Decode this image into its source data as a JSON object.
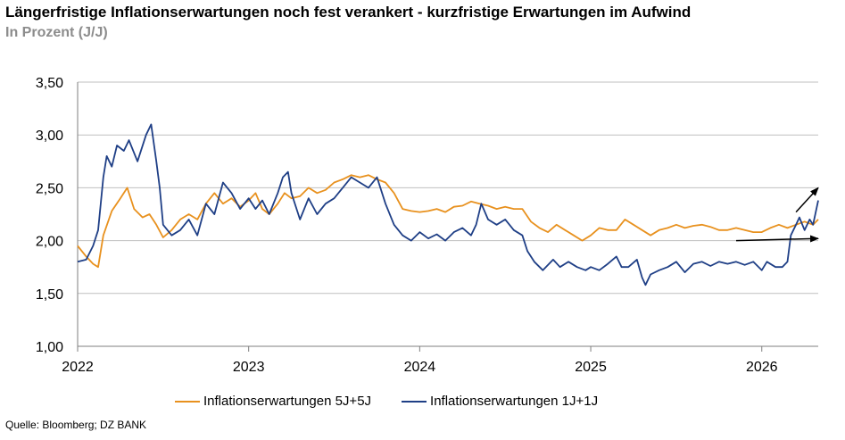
{
  "header": {
    "title": "Längerfristige Inflationserwartungen noch fest verankert - kurzfristige Erwartungen im Aufwind",
    "subtitle": "In Prozent (J/J)"
  },
  "footer": {
    "source": "Quelle: Bloomberg; DZ BANK"
  },
  "colors": {
    "series_5y5y": "#e8911e",
    "series_1y1y": "#1f3f86",
    "grid": "#bfbfbf",
    "axis": "#7f7f7f"
  },
  "chart_data": {
    "type": "line",
    "title": "Längerfristige Inflationserwartungen noch fest verankert - kurzfristige Erwartungen im Aufwind",
    "subtitle": "In Prozent (J/J)",
    "xlabel": "",
    "ylabel": "",
    "ylim": [
      1.0,
      3.5
    ],
    "xlim": [
      2022.0,
      2026.33
    ],
    "grid": "horizontal",
    "legend_position": "bottom",
    "y_ticks": [
      "1,00",
      "1,50",
      "2,00",
      "2,50",
      "3,00",
      "3,50"
    ],
    "x_ticks": [
      "2022",
      "2023",
      "2024",
      "2025",
      "2026"
    ],
    "series": [
      {
        "name": "Inflationserwartungen 5J+5J",
        "color": "#e8911e",
        "points": [
          [
            2022.0,
            1.95
          ],
          [
            2022.05,
            1.85
          ],
          [
            2022.09,
            1.78
          ],
          [
            2022.12,
            1.75
          ],
          [
            2022.15,
            2.05
          ],
          [
            2022.2,
            2.28
          ],
          [
            2022.25,
            2.4
          ],
          [
            2022.29,
            2.5
          ],
          [
            2022.33,
            2.3
          ],
          [
            2022.38,
            2.22
          ],
          [
            2022.42,
            2.25
          ],
          [
            2022.46,
            2.15
          ],
          [
            2022.5,
            2.03
          ],
          [
            2022.55,
            2.1
          ],
          [
            2022.6,
            2.2
          ],
          [
            2022.65,
            2.25
          ],
          [
            2022.7,
            2.2
          ],
          [
            2022.75,
            2.35
          ],
          [
            2022.8,
            2.45
          ],
          [
            2022.85,
            2.35
          ],
          [
            2022.9,
            2.4
          ],
          [
            2022.95,
            2.32
          ],
          [
            2023.0,
            2.38
          ],
          [
            2023.04,
            2.45
          ],
          [
            2023.08,
            2.3
          ],
          [
            2023.12,
            2.25
          ],
          [
            2023.17,
            2.35
          ],
          [
            2023.21,
            2.45
          ],
          [
            2023.25,
            2.4
          ],
          [
            2023.3,
            2.42
          ],
          [
            2023.35,
            2.5
          ],
          [
            2023.4,
            2.45
          ],
          [
            2023.45,
            2.48
          ],
          [
            2023.5,
            2.55
          ],
          [
            2023.55,
            2.58
          ],
          [
            2023.6,
            2.62
          ],
          [
            2023.65,
            2.6
          ],
          [
            2023.7,
            2.62
          ],
          [
            2023.75,
            2.58
          ],
          [
            2023.8,
            2.55
          ],
          [
            2023.85,
            2.45
          ],
          [
            2023.9,
            2.3
          ],
          [
            2023.95,
            2.28
          ],
          [
            2024.0,
            2.27
          ],
          [
            2024.05,
            2.28
          ],
          [
            2024.1,
            2.3
          ],
          [
            2024.15,
            2.27
          ],
          [
            2024.2,
            2.32
          ],
          [
            2024.25,
            2.33
          ],
          [
            2024.3,
            2.37
          ],
          [
            2024.35,
            2.35
          ],
          [
            2024.4,
            2.33
          ],
          [
            2024.45,
            2.3
          ],
          [
            2024.5,
            2.32
          ],
          [
            2024.55,
            2.3
          ],
          [
            2024.6,
            2.3
          ],
          [
            2024.65,
            2.18
          ],
          [
            2024.7,
            2.12
          ],
          [
            2024.75,
            2.08
          ],
          [
            2024.8,
            2.15
          ],
          [
            2024.85,
            2.1
          ],
          [
            2024.9,
            2.05
          ],
          [
            2024.95,
            2.0
          ],
          [
            2025.0,
            2.05
          ],
          [
            2025.05,
            2.12
          ],
          [
            2025.1,
            2.1
          ],
          [
            2025.15,
            2.1
          ],
          [
            2025.2,
            2.2
          ],
          [
            2025.25,
            2.15
          ],
          [
            2025.3,
            2.1
          ],
          [
            2025.35,
            2.05
          ],
          [
            2025.4,
            2.1
          ],
          [
            2025.45,
            2.12
          ],
          [
            2025.5,
            2.15
          ],
          [
            2025.55,
            2.12
          ],
          [
            2025.6,
            2.14
          ],
          [
            2025.65,
            2.15
          ],
          [
            2025.7,
            2.13
          ],
          [
            2025.75,
            2.1
          ],
          [
            2025.8,
            2.1
          ],
          [
            2025.85,
            2.12
          ],
          [
            2025.9,
            2.1
          ],
          [
            2025.95,
            2.08
          ],
          [
            2026.0,
            2.08
          ],
          [
            2026.05,
            2.12
          ],
          [
            2026.1,
            2.15
          ],
          [
            2026.15,
            2.12
          ],
          [
            2026.2,
            2.15
          ],
          [
            2026.25,
            2.18
          ],
          [
            2026.3,
            2.15
          ],
          [
            2026.33,
            2.2
          ]
        ]
      },
      {
        "name": "Inflationserwartungen 1J+1J",
        "color": "#1f3f86",
        "points": [
          [
            2022.0,
            1.8
          ],
          [
            2022.05,
            1.82
          ],
          [
            2022.09,
            1.95
          ],
          [
            2022.12,
            2.1
          ],
          [
            2022.15,
            2.6
          ],
          [
            2022.17,
            2.8
          ],
          [
            2022.2,
            2.7
          ],
          [
            2022.23,
            2.9
          ],
          [
            2022.27,
            2.85
          ],
          [
            2022.3,
            2.95
          ],
          [
            2022.35,
            2.75
          ],
          [
            2022.4,
            3.0
          ],
          [
            2022.43,
            3.1
          ],
          [
            2022.46,
            2.75
          ],
          [
            2022.48,
            2.5
          ],
          [
            2022.5,
            2.15
          ],
          [
            2022.55,
            2.05
          ],
          [
            2022.6,
            2.1
          ],
          [
            2022.65,
            2.2
          ],
          [
            2022.7,
            2.05
          ],
          [
            2022.75,
            2.35
          ],
          [
            2022.8,
            2.25
          ],
          [
            2022.85,
            2.55
          ],
          [
            2022.9,
            2.45
          ],
          [
            2022.95,
            2.3
          ],
          [
            2023.0,
            2.4
          ],
          [
            2023.04,
            2.3
          ],
          [
            2023.08,
            2.38
          ],
          [
            2023.12,
            2.25
          ],
          [
            2023.17,
            2.45
          ],
          [
            2023.2,
            2.6
          ],
          [
            2023.23,
            2.65
          ],
          [
            2023.25,
            2.45
          ],
          [
            2023.3,
            2.2
          ],
          [
            2023.35,
            2.4
          ],
          [
            2023.4,
            2.25
          ],
          [
            2023.45,
            2.35
          ],
          [
            2023.5,
            2.4
          ],
          [
            2023.55,
            2.5
          ],
          [
            2023.6,
            2.6
          ],
          [
            2023.65,
            2.55
          ],
          [
            2023.7,
            2.5
          ],
          [
            2023.75,
            2.6
          ],
          [
            2023.8,
            2.35
          ],
          [
            2023.85,
            2.15
          ],
          [
            2023.9,
            2.05
          ],
          [
            2023.95,
            2.0
          ],
          [
            2024.0,
            2.08
          ],
          [
            2024.05,
            2.02
          ],
          [
            2024.1,
            2.06
          ],
          [
            2024.15,
            2.0
          ],
          [
            2024.2,
            2.08
          ],
          [
            2024.25,
            2.12
          ],
          [
            2024.3,
            2.05
          ],
          [
            2024.33,
            2.15
          ],
          [
            2024.36,
            2.35
          ],
          [
            2024.4,
            2.2
          ],
          [
            2024.45,
            2.15
          ],
          [
            2024.5,
            2.2
          ],
          [
            2024.55,
            2.1
          ],
          [
            2024.6,
            2.05
          ],
          [
            2024.63,
            1.9
          ],
          [
            2024.67,
            1.8
          ],
          [
            2024.72,
            1.72
          ],
          [
            2024.78,
            1.82
          ],
          [
            2024.82,
            1.75
          ],
          [
            2024.87,
            1.8
          ],
          [
            2024.92,
            1.75
          ],
          [
            2024.97,
            1.72
          ],
          [
            2025.0,
            1.75
          ],
          [
            2025.05,
            1.72
          ],
          [
            2025.1,
            1.78
          ],
          [
            2025.15,
            1.85
          ],
          [
            2025.18,
            1.75
          ],
          [
            2025.22,
            1.75
          ],
          [
            2025.27,
            1.82
          ],
          [
            2025.3,
            1.65
          ],
          [
            2025.32,
            1.58
          ],
          [
            2025.35,
            1.68
          ],
          [
            2025.4,
            1.72
          ],
          [
            2025.45,
            1.75
          ],
          [
            2025.5,
            1.8
          ],
          [
            2025.55,
            1.7
          ],
          [
            2025.6,
            1.78
          ],
          [
            2025.65,
            1.8
          ],
          [
            2025.7,
            1.76
          ],
          [
            2025.75,
            1.8
          ],
          [
            2025.8,
            1.78
          ],
          [
            2025.85,
            1.8
          ],
          [
            2025.9,
            1.77
          ],
          [
            2025.95,
            1.8
          ],
          [
            2026.0,
            1.72
          ],
          [
            2026.03,
            1.8
          ],
          [
            2026.08,
            1.75
          ],
          [
            2026.12,
            1.75
          ],
          [
            2026.15,
            1.8
          ],
          [
            2026.17,
            2.05
          ],
          [
            2026.2,
            2.15
          ],
          [
            2026.22,
            2.22
          ],
          [
            2026.25,
            2.1
          ],
          [
            2026.28,
            2.2
          ],
          [
            2026.3,
            2.15
          ],
          [
            2026.33,
            2.38
          ]
        ]
      }
    ],
    "annotations": [
      {
        "type": "arrow",
        "from": [
          2025.85,
          2.0
        ],
        "to": [
          2026.33,
          2.02
        ]
      },
      {
        "type": "arrow",
        "from": [
          2026.2,
          2.27
        ],
        "to": [
          2026.33,
          2.5
        ]
      }
    ]
  }
}
